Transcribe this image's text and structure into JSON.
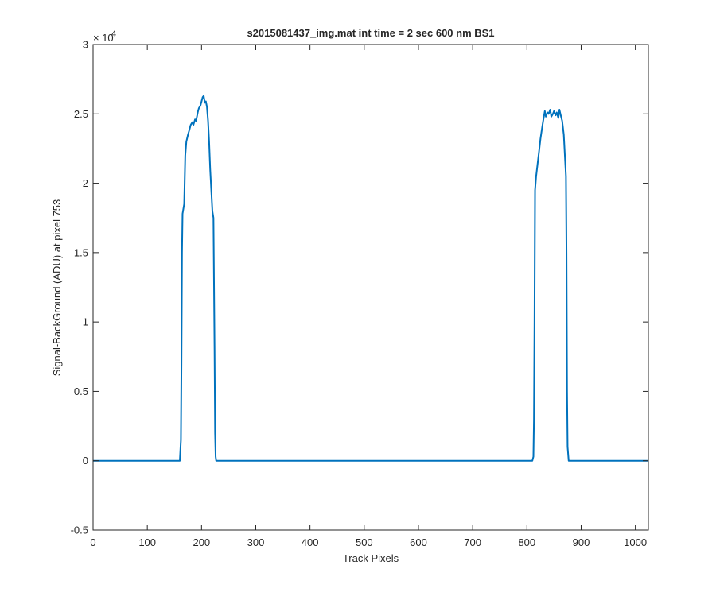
{
  "chart_data": {
    "type": "line",
    "title": "s2015081437_img.mat int time = 2 sec  600 nm BS1",
    "xlabel": "Track Pixels",
    "ylabel": "Signal-BackGround (ADU) at pixel 753",
    "xlim": [
      0,
      1024
    ],
    "ylim": [
      -5000,
      30000
    ],
    "x_ticks": [
      0,
      100,
      200,
      300,
      400,
      500,
      600,
      700,
      800,
      900,
      1000
    ],
    "x_tick_labels": [
      "0",
      "100",
      "200",
      "300",
      "400",
      "500",
      "600",
      "700",
      "800",
      "900",
      "1000"
    ],
    "y_ticks": [
      -5000,
      0,
      5000,
      10000,
      15000,
      20000,
      25000,
      30000
    ],
    "y_tick_labels": [
      "-0.5",
      "0",
      "0.5",
      "1",
      "1.5",
      "2",
      "2.5",
      "3"
    ],
    "y_exponent_base": "× 10",
    "y_exponent_power": "4",
    "grid": false,
    "line_color": "#0072bd",
    "series": [
      {
        "x": [
          0,
          100,
          160,
          162,
          163,
          164,
          165,
          168,
          170,
          172,
          175,
          178,
          180,
          183,
          185,
          188,
          190,
          193,
          195,
          198,
          200,
          202,
          204,
          206,
          208,
          210,
          212,
          214,
          216,
          218,
          220,
          222,
          224,
          225,
          226,
          227,
          230,
          300,
          400,
          500,
          600,
          700,
          810,
          812,
          813,
          814,
          815,
          817,
          820,
          823,
          825,
          828,
          830,
          833,
          835,
          838,
          840,
          843,
          845,
          848,
          850,
          853,
          855,
          858,
          860,
          863,
          865,
          868,
          870,
          872,
          873,
          874,
          875,
          877,
          880,
          950,
          1024
        ],
        "y": [
          0,
          0,
          0,
          1500,
          7000,
          15000,
          17800,
          18500,
          22000,
          23000,
          23500,
          23900,
          24200,
          24400,
          24200,
          24600,
          24500,
          25100,
          25400,
          25600,
          25900,
          26200,
          26300,
          25800,
          25900,
          25500,
          24500,
          23000,
          21000,
          19500,
          18000,
          17500,
          8000,
          2000,
          300,
          0,
          0,
          0,
          0,
          0,
          0,
          0,
          0,
          300,
          3000,
          10000,
          19500,
          20500,
          21500,
          22500,
          23200,
          24000,
          24500,
          25200,
          24800,
          25100,
          25000,
          25300,
          24800,
          25000,
          25200,
          24900,
          25100,
          24700,
          25300,
          24800,
          24500,
          23500,
          22000,
          20500,
          15000,
          5000,
          1000,
          0,
          0,
          0,
          0
        ]
      }
    ]
  }
}
